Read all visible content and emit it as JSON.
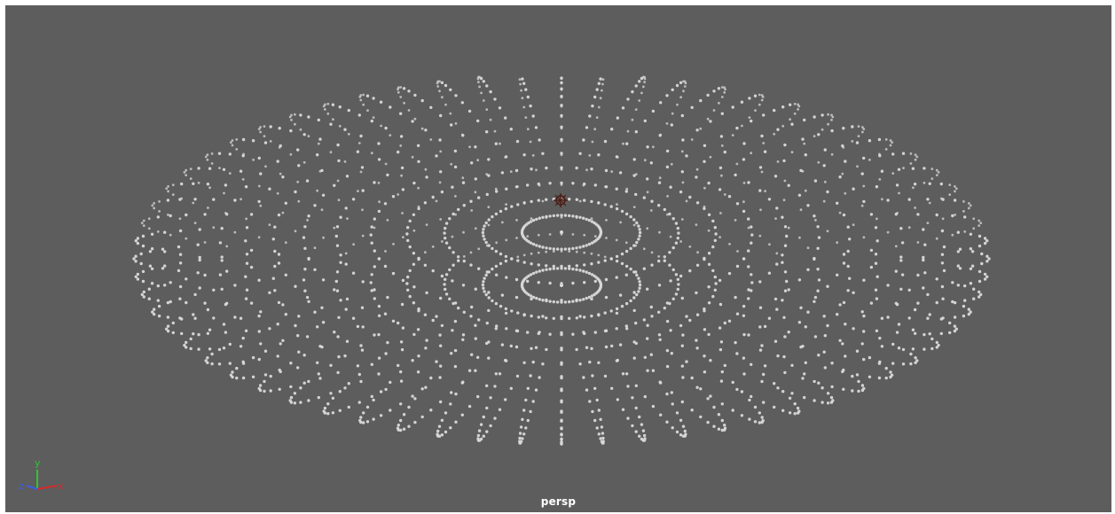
{
  "viewport": {
    "camera_label": "persp",
    "background": "#5d5d5d"
  },
  "axis_gizmo": {
    "x_label": "x",
    "y_label": "y",
    "z_label": "z",
    "x_color": "#d42a2a",
    "y_color": "#31c431",
    "z_color": "#3b5ee6"
  },
  "scene": {
    "object": "point sphere",
    "point_color": "#d9d9d9",
    "pivot_icon": "pivot-manipulator-icon",
    "pivot_color": "#4a1c14"
  }
}
